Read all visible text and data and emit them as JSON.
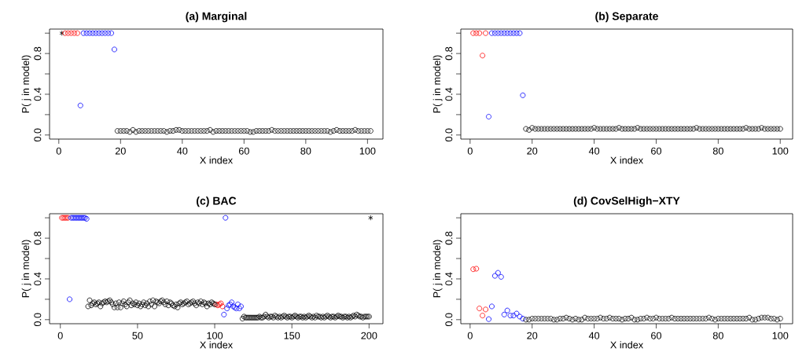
{
  "chart_data": [
    {
      "type": "scatter",
      "title": "(a) Marginal",
      "xlabel": "X index",
      "ylabel": "P( j  in model)",
      "xlim": [
        -3,
        105
      ],
      "ylim": [
        -0.04,
        1.04
      ],
      "xticks": [
        0,
        20,
        40,
        60,
        80,
        100
      ],
      "yticks": [
        {
          "value": 0,
          "label": "0.0"
        },
        {
          "value": 0.2,
          "label": null
        },
        {
          "value": 0.4,
          "label": "0.4"
        },
        {
          "value": 0.6,
          "label": null
        },
        {
          "value": 0.8,
          "label": "0.8"
        },
        {
          "value": 1,
          "label": null
        }
      ],
      "series": [
        {
          "color": "#000000",
          "marker": "cross",
          "x": [
            1
          ],
          "values": [
            1
          ]
        },
        {
          "color": "#ff0000",
          "marker": "circle",
          "x": [
            2,
            3,
            4,
            5,
            6
          ],
          "values": [
            1,
            1,
            1,
            1,
            1
          ]
        },
        {
          "color": "#0000ff",
          "marker": "circle",
          "x": [
            7,
            8,
            9,
            10,
            11,
            12,
            13,
            14,
            15,
            16,
            17,
            18
          ],
          "values": [
            0.29,
            1,
            1,
            1,
            1,
            1,
            1,
            1,
            1,
            1,
            1,
            0.84
          ]
        },
        {
          "color": "#000000",
          "marker": "circle",
          "x": [
            19,
            20,
            21,
            22,
            23,
            24,
            25,
            26,
            27,
            28,
            29,
            30,
            31,
            32,
            33,
            34,
            35,
            36,
            37,
            38,
            39,
            40,
            41,
            42,
            43,
            44,
            45,
            46,
            47,
            48,
            49,
            50,
            51,
            52,
            53,
            54,
            55,
            56,
            57,
            58,
            59,
            60,
            61,
            62,
            63,
            64,
            65,
            66,
            67,
            68,
            69,
            70,
            71,
            72,
            73,
            74,
            75,
            76,
            77,
            78,
            79,
            80,
            81,
            82,
            83,
            84,
            85,
            86,
            87,
            88,
            89,
            90,
            91,
            92,
            93,
            94,
            95,
            96,
            97,
            98,
            99,
            100,
            101
          ],
          "values": [
            0.04,
            0.04,
            0.04,
            0.04,
            0.03,
            0.05,
            0.03,
            0.04,
            0.04,
            0.04,
            0.04,
            0.04,
            0.04,
            0.04,
            0.04,
            0.04,
            0.03,
            0.04,
            0.04,
            0.05,
            0.05,
            0.04,
            0.04,
            0.04,
            0.04,
            0.04,
            0.04,
            0.04,
            0.04,
            0.04,
            0.05,
            0.03,
            0.04,
            0.04,
            0.04,
            0.04,
            0.04,
            0.04,
            0.04,
            0.04,
            0.04,
            0.04,
            0.04,
            0.03,
            0.03,
            0.04,
            0.04,
            0.04,
            0.04,
            0.04,
            0.05,
            0.04,
            0.04,
            0.04,
            0.04,
            0.04,
            0.04,
            0.04,
            0.04,
            0.04,
            0.04,
            0.04,
            0.04,
            0.04,
            0.04,
            0.04,
            0.04,
            0.04,
            0.04,
            0.03,
            0.04,
            0.05,
            0.04,
            0.04,
            0.04,
            0.04,
            0.04,
            0.05,
            0.04,
            0.04,
            0.04,
            0.04,
            0.04
          ]
        }
      ]
    },
    {
      "type": "scatter",
      "title": "(b) Separate",
      "xlabel": "X index",
      "ylabel": "P( j  in model)",
      "xlim": [
        -3,
        104
      ],
      "ylim": [
        -0.04,
        1.04
      ],
      "xticks": [
        0,
        20,
        40,
        60,
        80,
        100
      ],
      "yticks": [
        {
          "value": 0,
          "label": "0.0"
        },
        {
          "value": 0.2,
          "label": null
        },
        {
          "value": 0.4,
          "label": "0.4"
        },
        {
          "value": 0.6,
          "label": null
        },
        {
          "value": 0.8,
          "label": "0.8"
        },
        {
          "value": 1,
          "label": null
        }
      ],
      "series": [
        {
          "color": "#ff0000",
          "marker": "circle",
          "x": [
            1,
            2,
            3,
            4,
            5
          ],
          "values": [
            1,
            1,
            1,
            0.78,
            1
          ]
        },
        {
          "color": "#0000ff",
          "marker": "circle",
          "x": [
            6,
            7,
            8,
            9,
            10,
            11,
            12,
            13,
            14,
            15,
            16,
            17
          ],
          "values": [
            0.18,
            1,
            1,
            1,
            1,
            1,
            1,
            1,
            1,
            1,
            1,
            0.39
          ]
        },
        {
          "color": "#000000",
          "marker": "circle",
          "x": [
            18,
            19,
            20,
            21,
            22,
            23,
            24,
            25,
            26,
            27,
            28,
            29,
            30,
            31,
            32,
            33,
            34,
            35,
            36,
            37,
            38,
            39,
            40,
            41,
            42,
            43,
            44,
            45,
            46,
            47,
            48,
            49,
            50,
            51,
            52,
            53,
            54,
            55,
            56,
            57,
            58,
            59,
            60,
            61,
            62,
            63,
            64,
            65,
            66,
            67,
            68,
            69,
            70,
            71,
            72,
            73,
            74,
            75,
            76,
            77,
            78,
            79,
            80,
            81,
            82,
            83,
            84,
            85,
            86,
            87,
            88,
            89,
            90,
            91,
            92,
            93,
            94,
            95,
            96,
            97,
            98,
            99,
            100
          ],
          "values": [
            0.06,
            0.05,
            0.07,
            0.06,
            0.06,
            0.06,
            0.06,
            0.06,
            0.06,
            0.06,
            0.06,
            0.06,
            0.06,
            0.06,
            0.06,
            0.06,
            0.06,
            0.06,
            0.06,
            0.06,
            0.06,
            0.06,
            0.07,
            0.06,
            0.06,
            0.06,
            0.06,
            0.06,
            0.06,
            0.06,
            0.07,
            0.06,
            0.06,
            0.06,
            0.06,
            0.06,
            0.07,
            0.06,
            0.06,
            0.06,
            0.06,
            0.06,
            0.06,
            0.06,
            0.06,
            0.06,
            0.06,
            0.06,
            0.06,
            0.06,
            0.06,
            0.06,
            0.06,
            0.06,
            0.06,
            0.07,
            0.06,
            0.06,
            0.06,
            0.06,
            0.06,
            0.06,
            0.06,
            0.06,
            0.06,
            0.06,
            0.06,
            0.06,
            0.06,
            0.06,
            0.06,
            0.07,
            0.06,
            0.06,
            0.06,
            0.06,
            0.07,
            0.06,
            0.06,
            0.06,
            0.06,
            0.06,
            0.06
          ]
        }
      ]
    },
    {
      "type": "scatter",
      "title": "(c) BAC",
      "xlabel": "X index",
      "ylabel": "P( j  in model)",
      "xlim": [
        -7,
        209
      ],
      "ylim": [
        -0.04,
        1.04
      ],
      "xticks": [
        0,
        50,
        100,
        150,
        200
      ],
      "yticks": [
        {
          "value": 0,
          "label": "0.0"
        },
        {
          "value": 0.2,
          "label": null
        },
        {
          "value": 0.4,
          "label": "0.4"
        },
        {
          "value": 0.6,
          "label": null
        },
        {
          "value": 0.8,
          "label": "0.8"
        },
        {
          "value": 1,
          "label": null
        }
      ],
      "series": [
        {
          "color": "#ff0000",
          "marker": "circle",
          "x": [
            1,
            2,
            3,
            4,
            5,
            101,
            102,
            103,
            104,
            105
          ],
          "values": [
            1,
            1,
            1,
            1,
            1,
            0.15,
            0.14,
            0.15,
            0.16,
            0.13
          ]
        },
        {
          "color": "#0000ff",
          "marker": "circle",
          "x": [
            6,
            7,
            8,
            9,
            10,
            11,
            12,
            13,
            14,
            15,
            16,
            17,
            106,
            107,
            108,
            109,
            110,
            111,
            112,
            113,
            114,
            115,
            116,
            117
          ],
          "values": [
            0.2,
            1,
            1,
            1,
            1,
            1,
            1,
            1,
            1,
            1,
            1,
            0.99,
            0.05,
            1,
            0.11,
            0.14,
            0.15,
            0.17,
            0.13,
            0.12,
            0.11,
            0.15,
            0.11,
            0.13
          ]
        },
        {
          "color": "#000000",
          "marker": "circle",
          "x": [
            18,
            19,
            20,
            21,
            22,
            23,
            24,
            25,
            26,
            27,
            28,
            29,
            30,
            31,
            32,
            33,
            34,
            35,
            36,
            37,
            38,
            39,
            40,
            41,
            42,
            43,
            44,
            45,
            46,
            47,
            48,
            49,
            50,
            51,
            52,
            53,
            54,
            55,
            56,
            57,
            58,
            59,
            60,
            61,
            62,
            63,
            64,
            65,
            66,
            67,
            68,
            69,
            70,
            71,
            72,
            73,
            74,
            75,
            76,
            77,
            78,
            79,
            80,
            81,
            82,
            83,
            84,
            85,
            86,
            87,
            88,
            89,
            90,
            91,
            92,
            93,
            94,
            95,
            96,
            97,
            98,
            99,
            100,
            118,
            119,
            120,
            121,
            122,
            123,
            124,
            125,
            126,
            127,
            128,
            129,
            130,
            131,
            132,
            133,
            134,
            135,
            136,
            137,
            138,
            139,
            140,
            141,
            142,
            143,
            144,
            145,
            146,
            147,
            148,
            149,
            150,
            151,
            152,
            153,
            154,
            155,
            156,
            157,
            158,
            159,
            160,
            161,
            162,
            163,
            164,
            165,
            166,
            167,
            168,
            169,
            170,
            171,
            172,
            173,
            174,
            175,
            176,
            177,
            178,
            179,
            180,
            181,
            182,
            183,
            184,
            185,
            186,
            187,
            188,
            189,
            190,
            191,
            192,
            193,
            194,
            195,
            196,
            197,
            198,
            199,
            200
          ],
          "values": [
            0.13,
            0.19,
            0.14,
            0.16,
            0.17,
            0.15,
            0.16,
            0.17,
            0.13,
            0.16,
            0.17,
            0.18,
            0.17,
            0.18,
            0.19,
            0.17,
            0.15,
            0.12,
            0.16,
            0.12,
            0.17,
            0.12,
            0.16,
            0.18,
            0.15,
            0.13,
            0.17,
            0.19,
            0.14,
            0.16,
            0.15,
            0.17,
            0.14,
            0.16,
            0.13,
            0.15,
            0.17,
            0.14,
            0.16,
            0.13,
            0.18,
            0.15,
            0.19,
            0.13,
            0.18,
            0.17,
            0.16,
            0.18,
            0.19,
            0.17,
            0.15,
            0.18,
            0.14,
            0.17,
            0.16,
            0.14,
            0.13,
            0.15,
            0.12,
            0.16,
            0.17,
            0.15,
            0.16,
            0.17,
            0.18,
            0.15,
            0.16,
            0.17,
            0.18,
            0.16,
            0.14,
            0.17,
            0.16,
            0.18,
            0.15,
            0.17,
            0.16,
            0.13,
            0.16,
            0.15,
            0.17,
            0.16,
            0.15,
            0.01,
            0.03,
            0.02,
            0.02,
            0.02,
            0.02,
            0.02,
            0.02,
            0.02,
            0.02,
            0.02,
            0.03,
            0.02,
            0.02,
            0.03,
            0.05,
            0.03,
            0.02,
            0.03,
            0.03,
            0.02,
            0.04,
            0.03,
            0.02,
            0.03,
            0.02,
            0.03,
            0.04,
            0.03,
            0.02,
            0.03,
            0.03,
            0.02,
            0.03,
            0.04,
            0.03,
            0.02,
            0.03,
            0.03,
            0.02,
            0.03,
            0.02,
            0.03,
            0.04,
            0.03,
            0.02,
            0.03,
            0.02,
            0.04,
            0.03,
            0.03,
            0.02,
            0.03,
            0.02,
            0.03,
            0.04,
            0.03,
            0.02,
            0.03,
            0.03,
            0.02,
            0.03,
            0.04,
            0.03,
            0.03,
            0.02,
            0.03,
            0.03,
            0.02,
            0.03,
            0.02,
            0.03,
            0.04,
            0.03,
            0.05,
            0.04,
            0.03,
            0.03,
            0.02,
            0.03,
            0.03,
            0.03,
            0.03
          ]
        },
        {
          "color": "#000000",
          "marker": "cross",
          "x": [
            201
          ],
          "values": [
            1
          ]
        }
      ]
    },
    {
      "type": "scatter",
      "title": "(d) CovSelHigh−XTY",
      "xlabel": "X index",
      "ylabel": "P( j  in model)",
      "xlim": [
        -3,
        104
      ],
      "ylim": [
        -0.04,
        1.04
      ],
      "xticks": [
        0,
        20,
        40,
        60,
        80,
        100
      ],
      "yticks": [
        {
          "value": 0,
          "label": "0.0"
        },
        {
          "value": 0.2,
          "label": null
        },
        {
          "value": 0.4,
          "label": "0.4"
        },
        {
          "value": 0.6,
          "label": null
        },
        {
          "value": 0.8,
          "label": "0.8"
        },
        {
          "value": 1,
          "label": null
        }
      ],
      "series": [
        {
          "color": "#ff0000",
          "marker": "circle",
          "x": [
            1,
            2,
            3,
            4,
            5
          ],
          "values": [
            0.495,
            0.5,
            0.11,
            0.04,
            0.1
          ]
        },
        {
          "color": "#0000ff",
          "marker": "circle",
          "x": [
            6,
            7,
            8,
            9,
            10,
            11,
            12,
            13,
            14,
            15,
            16,
            17
          ],
          "values": [
            0.005,
            0.13,
            0.43,
            0.46,
            0.42,
            0.05,
            0.09,
            0.04,
            0.04,
            0.06,
            0.03,
            0.01
          ]
        },
        {
          "color": "#000000",
          "marker": "circle",
          "x": [
            18,
            19,
            20,
            21,
            22,
            23,
            24,
            25,
            26,
            27,
            28,
            29,
            30,
            31,
            32,
            33,
            34,
            35,
            36,
            37,
            38,
            39,
            40,
            41,
            42,
            43,
            44,
            45,
            46,
            47,
            48,
            49,
            50,
            51,
            52,
            53,
            54,
            55,
            56,
            57,
            58,
            59,
            60,
            61,
            62,
            63,
            64,
            65,
            66,
            67,
            68,
            69,
            70,
            71,
            72,
            73,
            74,
            75,
            76,
            77,
            78,
            79,
            80,
            81,
            82,
            83,
            84,
            85,
            86,
            87,
            88,
            89,
            90,
            91,
            92,
            93,
            94,
            95,
            96,
            97,
            98,
            99,
            100
          ],
          "values": [
            0.0,
            0.0,
            0.01,
            0.01,
            0.01,
            0.01,
            0.01,
            0.01,
            0.01,
            0.0,
            0.0,
            0.01,
            0.01,
            0.02,
            0.01,
            0.0,
            0.01,
            0.0,
            0.0,
            0.02,
            0.01,
            0.01,
            0.01,
            0.01,
            0.02,
            0.01,
            0.01,
            0.02,
            0.01,
            0.01,
            0.01,
            0.0,
            0.01,
            0.01,
            0.02,
            0.0,
            0.0,
            0.01,
            0.01,
            0.02,
            0.01,
            0.01,
            0.02,
            0.01,
            0.01,
            0.01,
            0.01,
            0.02,
            0.01,
            0.01,
            0.01,
            0.01,
            0.01,
            0.01,
            0.01,
            0.01,
            0.01,
            0.01,
            0.01,
            0.02,
            0.01,
            0.0,
            0.01,
            0.01,
            0.01,
            0.01,
            0.01,
            0.01,
            0.01,
            0.01,
            0.01,
            0.01,
            0.02,
            0.0,
            0.0,
            0.01,
            0.02,
            0.02,
            0.02,
            0.01,
            0.01,
            0.0,
            0.01
          ]
        }
      ]
    }
  ]
}
